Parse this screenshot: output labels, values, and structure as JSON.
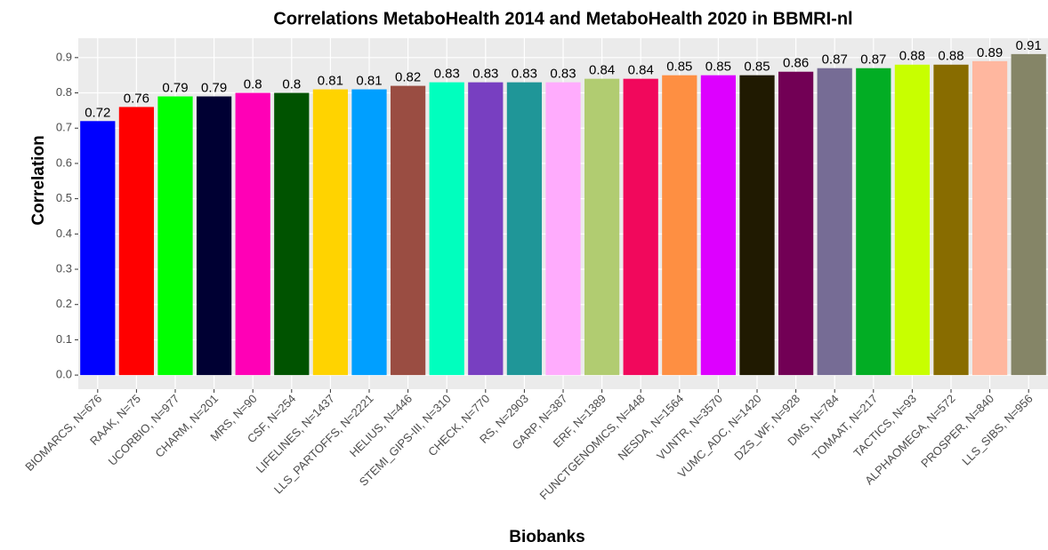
{
  "chart_data": {
    "type": "bar",
    "title": "Correlations MetaboHealth 2014 and MetaboHealth 2020 in BBMRI-nl",
    "x_label": "Biobanks",
    "y_label": "Correlation",
    "categories": [
      "BIOMARCS, N=676",
      "RAAK, N=75",
      "UCORBIO, N=977",
      "CHARM, N=201",
      "MRS, N=90",
      "CSF, N=254",
      "LIFELINES, N=1437",
      "LLS_PARTOFFS, N=2221",
      "HELIUS, N=446",
      "STEMI_GIPS-III, N=310",
      "CHECK, N=770",
      "RS, N=2903",
      "GARP, N=387",
      "ERF, N=1389",
      "FUNCTGENOMICS, N=448",
      "NESDA, N=1564",
      "VUNTR, N=3570",
      "VUMC_ADC, N=1420",
      "DZS_WF, N=928",
      "DMS, N=784",
      "TOMAAT, N=217",
      "TACTICS, N=93",
      "ALPHAOMEGA, N=572",
      "PROSPER, N=840",
      "LLS_SIBS, N=956"
    ],
    "values": [
      0.72,
      0.76,
      0.79,
      0.79,
      0.8,
      0.8,
      0.81,
      0.81,
      0.82,
      0.83,
      0.83,
      0.83,
      0.83,
      0.84,
      0.84,
      0.85,
      0.85,
      0.85,
      0.86,
      0.87,
      0.87,
      0.88,
      0.88,
      0.89,
      0.91
    ],
    "colors": [
      "#0000ff",
      "#ff0000",
      "#00ff00",
      "#000033",
      "#ff00b6",
      "#005300",
      "#ffd300",
      "#009fff",
      "#9a4d42",
      "#00ffbe",
      "#783fc1",
      "#1f9698",
      "#ffacfd",
      "#b1cc71",
      "#f1085c",
      "#fe8f42",
      "#dd00ff",
      "#201a01",
      "#720055",
      "#766c95",
      "#02ad24",
      "#c8ff00",
      "#886c00",
      "#ffb79f",
      "#858567"
    ],
    "ylim": [
      -0.04,
      0.955
    ],
    "yticks": [
      {
        "value": 0,
        "label": "0.0"
      },
      0.1,
      0.2,
      0.3,
      0.4,
      0.5,
      0.6,
      0.7,
      0.8,
      0.9
    ],
    "grid": true
  }
}
